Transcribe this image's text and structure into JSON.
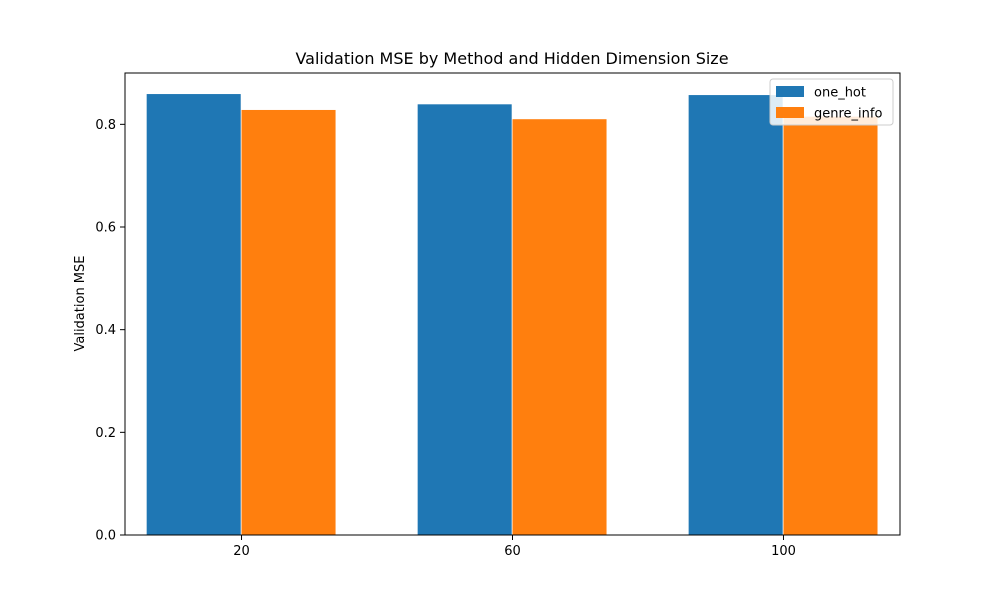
{
  "chart_data": {
    "type": "bar",
    "title": "Validation MSE by Method and Hidden Dimension Size",
    "xlabel": "",
    "ylabel": "Validation MSE",
    "categories": [
      "20",
      "60",
      "100"
    ],
    "series": [
      {
        "name": "one_hot",
        "color": "#1f77b4",
        "values": [
          0.859,
          0.839,
          0.857
        ]
      },
      {
        "name": "genre_info",
        "color": "#ff7f0e",
        "values": [
          0.828,
          0.81,
          0.815
        ]
      }
    ],
    "ylim": [
      0,
      0.9
    ],
    "yticks": [
      0.0,
      0.2,
      0.4,
      0.6,
      0.8
    ],
    "ytick_labels": [
      "0.0",
      "0.2",
      "0.4",
      "0.6",
      "0.8"
    ],
    "legend_position": "top-right",
    "grid": false
  }
}
